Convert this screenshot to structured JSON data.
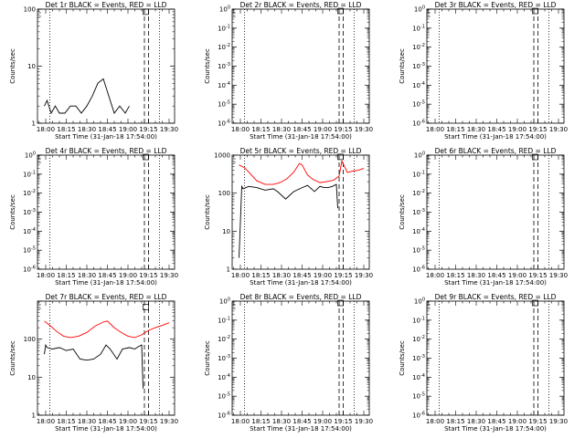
{
  "figure": {
    "title_suffix": "BLACK = Events, RED = LLD",
    "xlabel": "Start Time (31-Jan-18 17:54:00)",
    "ylabel": "Counts/sec",
    "colors": {
      "events": "#000000",
      "lld": "#ff0000",
      "background": "#ffffff"
    }
  },
  "chart_data": [
    {
      "type": "line",
      "detector": "1r",
      "title": "Det 1r BLACK = Events, RED = LLD",
      "xticks": [
        "18:00",
        "18:15",
        "18:30",
        "18:45",
        "19:00",
        "19:15",
        "19:30"
      ],
      "ytick_labels": [
        "1",
        "10",
        "100"
      ],
      "ylim": [
        1,
        100
      ],
      "ylog": true,
      "series": [
        {
          "name": "Events",
          "color": "#000000",
          "x": [
            "17:59",
            "18:01",
            "18:04",
            "18:07",
            "18:10",
            "18:14",
            "18:18",
            "18:22",
            "18:26",
            "18:30",
            "18:34",
            "18:38",
            "18:42",
            "18:46",
            "18:50",
            "18:54",
            "18:58",
            "19:01"
          ],
          "y": [
            2,
            2.5,
            1.5,
            2,
            1.5,
            1.5,
            2,
            2,
            1.5,
            2,
            3,
            5,
            6,
            3,
            1.5,
            2,
            1.5,
            2
          ]
        }
      ],
      "vlines": [
        {
          "x": "18:03",
          "style": "dotted"
        },
        {
          "x": "19:12",
          "style": "dashed"
        },
        {
          "x": "19:15",
          "style": "dashed"
        },
        {
          "x": "19:23",
          "style": "dotted"
        }
      ],
      "marker": {
        "x": "19:13",
        "y": 90
      }
    },
    {
      "type": "line",
      "detector": "2r",
      "title": "Det 2r BLACK = Events, RED = LLD",
      "xticks": [
        "18:00",
        "18:15",
        "18:30",
        "18:45",
        "19:00",
        "19:15",
        "19:30"
      ],
      "ytick_labels": [
        "10^0",
        "10^-1",
        "10^-2",
        "10^-3",
        "10^-4",
        "10^-5",
        "10^-6"
      ],
      "ylim": [
        1e-06,
        1
      ],
      "ylog": true,
      "series": [],
      "vlines": [
        {
          "x": "18:03",
          "style": "dotted"
        },
        {
          "x": "19:12",
          "style": "dashed"
        },
        {
          "x": "19:15",
          "style": "dashed"
        },
        {
          "x": "19:23",
          "style": "dotted"
        }
      ],
      "marker": {
        "x": "19:13",
        "y": 0.8
      }
    },
    {
      "type": "line",
      "detector": "3r",
      "title": "Det 3r BLACK = Events, RED = LLD",
      "xticks": [
        "18:00",
        "18:15",
        "18:30",
        "18:45",
        "19:00",
        "19:15",
        "19:30"
      ],
      "ytick_labels": [
        "10^0",
        "10^-1",
        "10^-2",
        "10^-3",
        "10^-4",
        "10^-5",
        "10^-6"
      ],
      "ylim": [
        1e-06,
        1
      ],
      "ylog": true,
      "series": [],
      "vlines": [
        {
          "x": "18:03",
          "style": "dotted"
        },
        {
          "x": "19:12",
          "style": "dashed"
        },
        {
          "x": "19:15",
          "style": "dashed"
        },
        {
          "x": "19:23",
          "style": "dotted"
        }
      ],
      "marker": {
        "x": "19:13",
        "y": 0.8
      }
    },
    {
      "type": "line",
      "detector": "4r",
      "title": "Det 4r BLACK = Events, RED = LLD",
      "xticks": [
        "18:00",
        "18:15",
        "18:30",
        "18:45",
        "19:00",
        "19:15",
        "19:30"
      ],
      "ytick_labels": [
        "10^0",
        "10^-1",
        "10^-2",
        "10^-3",
        "10^-4",
        "10^-5",
        "10^-6"
      ],
      "ylim": [
        1e-06,
        1
      ],
      "ylog": true,
      "series": [],
      "vlines": [
        {
          "x": "18:03",
          "style": "dotted"
        },
        {
          "x": "19:12",
          "style": "dashed"
        },
        {
          "x": "19:15",
          "style": "dashed"
        },
        {
          "x": "19:23",
          "style": "dotted"
        }
      ],
      "marker": {
        "x": "19:13",
        "y": 0.8
      }
    },
    {
      "type": "line",
      "detector": "5r",
      "title": "Det 5r BLACK = Events, RED = LLD",
      "xticks": [
        "18:00",
        "18:15",
        "18:30",
        "18:45",
        "19:00",
        "19:15",
        "19:30"
      ],
      "ytick_labels": [
        "1",
        "10",
        "100",
        "1000"
      ],
      "ylim": [
        1,
        1000
      ],
      "ylog": true,
      "series": [
        {
          "name": "Events",
          "color": "#000000",
          "x": [
            "17:59",
            "18:01",
            "18:02",
            "18:06",
            "18:12",
            "18:18",
            "18:24",
            "18:27",
            "18:33",
            "18:39",
            "18:45",
            "18:49",
            "18:54",
            "18:58",
            "19:01",
            "19:04",
            "19:07",
            "19:10",
            "19:11"
          ],
          "y": [
            2,
            150,
            130,
            150,
            140,
            120,
            130,
            110,
            70,
            110,
            140,
            160,
            110,
            150,
            140,
            140,
            150,
            170,
            40
          ]
        },
        {
          "name": "LLD",
          "color": "#ff0000",
          "x": [
            "17:59",
            "18:03",
            "18:07",
            "18:12",
            "18:18",
            "18:24",
            "18:29",
            "18:34",
            "18:39",
            "18:43",
            "18:45",
            "18:49",
            "18:53",
            "18:58",
            "19:03",
            "19:08",
            "19:12",
            "19:14",
            "19:18",
            "19:22",
            "19:26",
            "19:30"
          ],
          "y": [
            550,
            470,
            330,
            210,
            170,
            170,
            190,
            240,
            360,
            600,
            550,
            300,
            230,
            190,
            200,
            220,
            280,
            700,
            350,
            380,
            400,
            450
          ]
        }
      ],
      "vlines": [
        {
          "x": "18:03",
          "style": "dotted"
        },
        {
          "x": "19:12",
          "style": "dashed"
        },
        {
          "x": "19:15",
          "style": "dashed"
        },
        {
          "x": "19:23",
          "style": "dotted"
        }
      ],
      "marker": {
        "x": "19:13",
        "y": 900
      }
    },
    {
      "type": "line",
      "detector": "6r",
      "title": "Det 6r BLACK = Events, RED = LLD",
      "xticks": [
        "18:00",
        "18:15",
        "18:30",
        "18:45",
        "19:00",
        "19:15",
        "19:30"
      ],
      "ytick_labels": [
        "10^0",
        "10^-1",
        "10^-2",
        "10^-3",
        "10^-4",
        "10^-5",
        "10^-6"
      ],
      "ylim": [
        1e-06,
        1
      ],
      "ylog": true,
      "series": [],
      "vlines": [
        {
          "x": "18:03",
          "style": "dotted"
        },
        {
          "x": "19:12",
          "style": "dashed"
        },
        {
          "x": "19:15",
          "style": "dashed"
        },
        {
          "x": "19:23",
          "style": "dotted"
        }
      ],
      "marker": {
        "x": "19:13",
        "y": 0.8
      }
    },
    {
      "type": "line",
      "detector": "7r",
      "title": "Det 7r BLACK = Events, RED = LLD",
      "xticks": [
        "18:00",
        "18:15",
        "18:30",
        "18:45",
        "19:00",
        "19:15",
        "19:30"
      ],
      "ytick_labels": [
        "1",
        "10",
        "100"
      ],
      "ylim": [
        1,
        1000
      ],
      "ylog": true,
      "series": [
        {
          "name": "Events",
          "color": "#000000",
          "x": [
            "17:59",
            "18:00",
            "18:01",
            "18:05",
            "18:10",
            "18:15",
            "18:20",
            "18:25",
            "18:30",
            "18:35",
            "18:40",
            "18:44",
            "18:47",
            "18:52",
            "18:56",
            "19:01",
            "19:05",
            "19:08",
            "19:10",
            "19:11"
          ],
          "y": [
            40,
            70,
            60,
            55,
            60,
            50,
            55,
            30,
            28,
            30,
            40,
            70,
            55,
            30,
            55,
            60,
            55,
            65,
            70,
            5
          ]
        },
        {
          "name": "LLD",
          "color": "#ff0000",
          "x": [
            "17:59",
            "18:03",
            "18:08",
            "18:13",
            "18:18",
            "18:24",
            "18:30",
            "18:36",
            "18:42",
            "18:45",
            "18:50",
            "18:55",
            "19:00",
            "19:05",
            "19:10",
            "19:15",
            "19:20",
            "19:25",
            "19:30"
          ],
          "y": [
            300,
            230,
            160,
            120,
            110,
            120,
            150,
            220,
            280,
            300,
            200,
            150,
            120,
            110,
            130,
            170,
            200,
            230,
            270
          ]
        }
      ],
      "vlines": [
        {
          "x": "18:03",
          "style": "dotted"
        },
        {
          "x": "19:12",
          "style": "dashed"
        },
        {
          "x": "19:15",
          "style": "dashed"
        },
        {
          "x": "19:23",
          "style": "dotted"
        }
      ],
      "marker": {
        "x": "19:13",
        "y": 700
      }
    },
    {
      "type": "line",
      "detector": "8r",
      "title": "Det 8r BLACK = Events, RED = LLD",
      "xticks": [
        "18:00",
        "18:15",
        "18:30",
        "18:45",
        "19:00",
        "19:15",
        "19:30"
      ],
      "ytick_labels": [
        "10^0",
        "10^-1",
        "10^-2",
        "10^-3",
        "10^-4",
        "10^-5",
        "10^-6"
      ],
      "ylim": [
        1e-06,
        1
      ],
      "ylog": true,
      "series": [],
      "vlines": [
        {
          "x": "18:03",
          "style": "dotted"
        },
        {
          "x": "19:12",
          "style": "dashed"
        },
        {
          "x": "19:15",
          "style": "dashed"
        },
        {
          "x": "19:23",
          "style": "dotted"
        }
      ],
      "marker": {
        "x": "19:13",
        "y": 0.8
      }
    },
    {
      "type": "line",
      "detector": "9r",
      "title": "Det 9r BLACK = Events, RED = LLD",
      "xticks": [
        "18:00",
        "18:15",
        "18:30",
        "18:45",
        "19:00",
        "19:15",
        "19:30"
      ],
      "ytick_labels": [
        "10^0",
        "10^-1",
        "10^-2",
        "10^-3",
        "10^-4",
        "10^-5",
        "10^-6"
      ],
      "ylim": [
        1e-06,
        1
      ],
      "ylog": true,
      "series": [],
      "vlines": [
        {
          "x": "18:03",
          "style": "dotted"
        },
        {
          "x": "19:12",
          "style": "dashed"
        },
        {
          "x": "19:15",
          "style": "dashed"
        },
        {
          "x": "19:23",
          "style": "dotted"
        }
      ],
      "marker": {
        "x": "19:13",
        "y": 0.8
      }
    }
  ]
}
